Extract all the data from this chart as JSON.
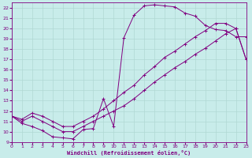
{
  "xlabel": "Windchill (Refroidissement éolien,°C)",
  "xlim": [
    0,
    23
  ],
  "ylim": [
    9,
    22.5
  ],
  "xticks": [
    0,
    1,
    2,
    3,
    4,
    5,
    6,
    7,
    8,
    9,
    10,
    11,
    12,
    13,
    14,
    15,
    16,
    17,
    18,
    19,
    20,
    21,
    22,
    23
  ],
  "yticks": [
    9,
    10,
    11,
    12,
    13,
    14,
    15,
    16,
    17,
    18,
    19,
    20,
    21,
    22
  ],
  "bg_color": "#c8ecea",
  "grid_color": "#b0d8d4",
  "line_color": "#800080",
  "curve1_x": [
    0,
    1,
    2,
    3,
    4,
    5,
    6,
    7,
    8,
    9,
    10,
    11,
    12,
    13,
    14,
    15,
    16,
    17,
    18,
    19,
    20,
    21,
    22,
    23
  ],
  "curve1_y": [
    11.5,
    10.8,
    10.5,
    10.1,
    9.5,
    9.4,
    9.3,
    10.2,
    10.3,
    13.2,
    10.5,
    19.1,
    21.3,
    22.2,
    22.3,
    22.2,
    22.1,
    21.5,
    21.2,
    20.3,
    19.9,
    19.8,
    19.2,
    19.2
  ],
  "curve2_x": [
    0,
    1,
    2,
    3,
    4,
    5,
    6,
    7,
    8,
    9,
    10,
    11,
    12,
    13,
    14,
    15,
    16,
    17,
    18,
    19,
    20,
    21,
    22,
    23
  ],
  "curve2_y": [
    11.5,
    11.0,
    11.5,
    11.0,
    10.5,
    10.0,
    10.0,
    10.5,
    11.0,
    11.5,
    12.0,
    12.5,
    13.2,
    14.0,
    14.8,
    15.5,
    16.2,
    16.8,
    17.5,
    18.1,
    18.8,
    19.5,
    20.0,
    17.0
  ],
  "curve3_x": [
    0,
    1,
    2,
    3,
    4,
    5,
    6,
    7,
    8,
    9,
    10,
    11,
    12,
    13,
    14,
    15,
    16,
    17,
    18,
    19,
    20,
    21,
    22,
    23
  ],
  "curve3_y": [
    11.5,
    11.2,
    11.8,
    11.5,
    11.0,
    10.5,
    10.5,
    11.0,
    11.5,
    12.2,
    13.0,
    13.8,
    14.5,
    15.5,
    16.3,
    17.2,
    17.8,
    18.5,
    19.2,
    19.8,
    20.5,
    20.5,
    20.0,
    17.0
  ]
}
